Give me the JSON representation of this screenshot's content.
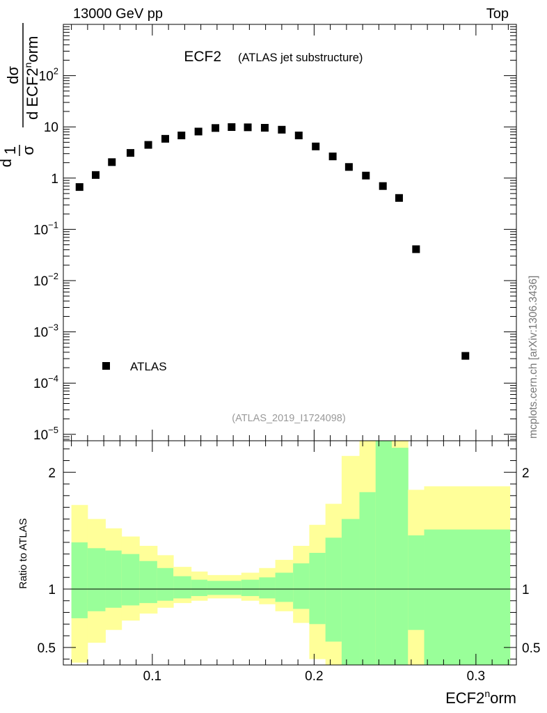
{
  "header": {
    "left": "13000 GeV pp",
    "right": "Top"
  },
  "side_label": "mcplots.cern.ch [arXiv:1306.3436]",
  "colors": {
    "band_outer": "#ffff99",
    "band_inner": "#99ff99",
    "marker": "#000000",
    "frame": "#000000",
    "watermark": "#999999"
  },
  "chart_data": [
    {
      "type": "scatter",
      "panel": "main",
      "title": "ECF2",
      "subtitle": "(ATLAS jet substructure)",
      "analysis_id": "(ATLAS_2019_I1724098)",
      "yscale": "log",
      "ylim": [
        7.5e-06,
        1000
      ],
      "xlim": [
        0.045,
        0.325
      ],
      "ylabel_parts": {
        "frac1_num": "1",
        "frac1_den": "σ",
        "frac2_num": "dσ",
        "frac2_den_prefix": "d ECF2",
        "frac2_den_sup": "n",
        "frac2_den_suffix": "orm",
        "lead": "d"
      },
      "y_ticks": [
        {
          "value": 1e-05,
          "base": "10",
          "exp": "−5"
        },
        {
          "value": 0.0001,
          "base": "10",
          "exp": "−4"
        },
        {
          "value": 0.001,
          "base": "10",
          "exp": "−3"
        },
        {
          "value": 0.01,
          "base": "10",
          "exp": "−2"
        },
        {
          "value": 0.1,
          "base": "10",
          "exp": "−1"
        },
        {
          "value": 1,
          "base": "1",
          "exp": ""
        },
        {
          "value": 10,
          "base": "10",
          "exp": ""
        },
        {
          "value": 100,
          "base": "10",
          "exp": "2"
        }
      ],
      "legend": {
        "label": "ATLAS",
        "position": "bottom-left"
      },
      "series": [
        {
          "name": "ATLAS",
          "x": [
            0.055,
            0.065,
            0.075,
            0.0865,
            0.0975,
            0.108,
            0.118,
            0.1285,
            0.139,
            0.149,
            0.159,
            0.1695,
            0.18,
            0.1905,
            0.201,
            0.2115,
            0.2215,
            0.232,
            0.2425,
            0.2525,
            0.263,
            0.2935
          ],
          "y": [
            0.67,
            1.15,
            2.05,
            3.1,
            4.45,
            5.85,
            6.8,
            8.1,
            9.5,
            9.9,
            9.8,
            9.6,
            8.8,
            6.8,
            4.15,
            2.65,
            1.65,
            1.12,
            0.7,
            0.41,
            0.041,
            0.00034
          ]
        }
      ]
    },
    {
      "type": "area",
      "panel": "ratio",
      "ylabel": "Ratio to ATLAS",
      "xlabel_parts": {
        "prefix": "ECF2",
        "sup": "n",
        "suffix": "orm"
      },
      "xlim": [
        0.045,
        0.325
      ],
      "ylim": [
        0.35,
        2.27
      ],
      "x_ticks": [
        {
          "value": 0.1,
          "label": "0.1"
        },
        {
          "value": 0.2,
          "label": "0.2"
        },
        {
          "value": 0.3,
          "label": "0.3"
        }
      ],
      "y_ticks": [
        {
          "value": 0.5,
          "label": "0.5"
        },
        {
          "value": 1,
          "label": "1"
        },
        {
          "value": 2,
          "label": "2"
        }
      ],
      "reference_line": 1,
      "bins": [
        {
          "lo": 0.05,
          "hi": 0.06,
          "outer": [
            0.37,
            1.72
          ],
          "inner": [
            0.75,
            1.4
          ]
        },
        {
          "lo": 0.06,
          "hi": 0.071,
          "outer": [
            0.54,
            1.6
          ],
          "inner": [
            0.81,
            1.35
          ]
        },
        {
          "lo": 0.071,
          "hi": 0.081,
          "outer": [
            0.65,
            1.52
          ],
          "inner": [
            0.84,
            1.33
          ]
        },
        {
          "lo": 0.081,
          "hi": 0.092,
          "outer": [
            0.73,
            1.45
          ],
          "inner": [
            0.86,
            1.3
          ]
        },
        {
          "lo": 0.092,
          "hi": 0.103,
          "outer": [
            0.79,
            1.37
          ],
          "inner": [
            0.88,
            1.24
          ]
        },
        {
          "lo": 0.103,
          "hi": 0.113,
          "outer": [
            0.84,
            1.29
          ],
          "inner": [
            0.9,
            1.18
          ]
        },
        {
          "lo": 0.113,
          "hi": 0.124,
          "outer": [
            0.88,
            1.19
          ],
          "inner": [
            0.92,
            1.11
          ]
        },
        {
          "lo": 0.124,
          "hi": 0.134,
          "outer": [
            0.9,
            1.15
          ],
          "inner": [
            0.94,
            1.08
          ]
        },
        {
          "lo": 0.134,
          "hi": 0.145,
          "outer": [
            0.92,
            1.12
          ],
          "inner": [
            0.95,
            1.07
          ]
        },
        {
          "lo": 0.145,
          "hi": 0.155,
          "outer": [
            0.92,
            1.12
          ],
          "inner": [
            0.95,
            1.07
          ]
        },
        {
          "lo": 0.155,
          "hi": 0.166,
          "outer": [
            0.9,
            1.14
          ],
          "inner": [
            0.94,
            1.08
          ]
        },
        {
          "lo": 0.166,
          "hi": 0.176,
          "outer": [
            0.87,
            1.18
          ],
          "inner": [
            0.92,
            1.1
          ]
        },
        {
          "lo": 0.176,
          "hi": 0.187,
          "outer": [
            0.81,
            1.25
          ],
          "inner": [
            0.89,
            1.14
          ]
        },
        {
          "lo": 0.187,
          "hi": 0.197,
          "outer": [
            0.71,
            1.37
          ],
          "inner": [
            0.83,
            1.22
          ]
        },
        {
          "lo": 0.197,
          "hi": 0.207,
          "outer": [
            0.4,
            1.55
          ],
          "inner": [
            0.7,
            1.31
          ]
        },
        {
          "lo": 0.207,
          "hi": 0.217,
          "outer": [
            0.35,
            1.73
          ],
          "inner": [
            0.55,
            1.44
          ]
        },
        {
          "lo": 0.217,
          "hi": 0.228,
          "outer": [
            0.35,
            2.14
          ],
          "inner": [
            0.35,
            1.6
          ]
        },
        {
          "lo": 0.228,
          "hi": 0.238,
          "outer": [
            0.35,
            2.27
          ],
          "inner": [
            0.35,
            1.83
          ]
        },
        {
          "lo": 0.238,
          "hi": 0.248,
          "outer": [
            0.35,
            2.27
          ],
          "inner": [
            0.35,
            2.27
          ]
        },
        {
          "lo": 0.248,
          "hi": 0.258,
          "outer": [
            0.35,
            2.27
          ],
          "inner": [
            0.35,
            2.21
          ]
        },
        {
          "lo": 0.258,
          "hi": 0.268,
          "outer": [
            0.35,
            1.85
          ],
          "inner": [
            0.65,
            1.46
          ]
        },
        {
          "lo": 0.268,
          "hi": 0.321,
          "outer": [
            0.35,
            1.88
          ],
          "inner": [
            0.35,
            1.51
          ]
        }
      ]
    }
  ]
}
